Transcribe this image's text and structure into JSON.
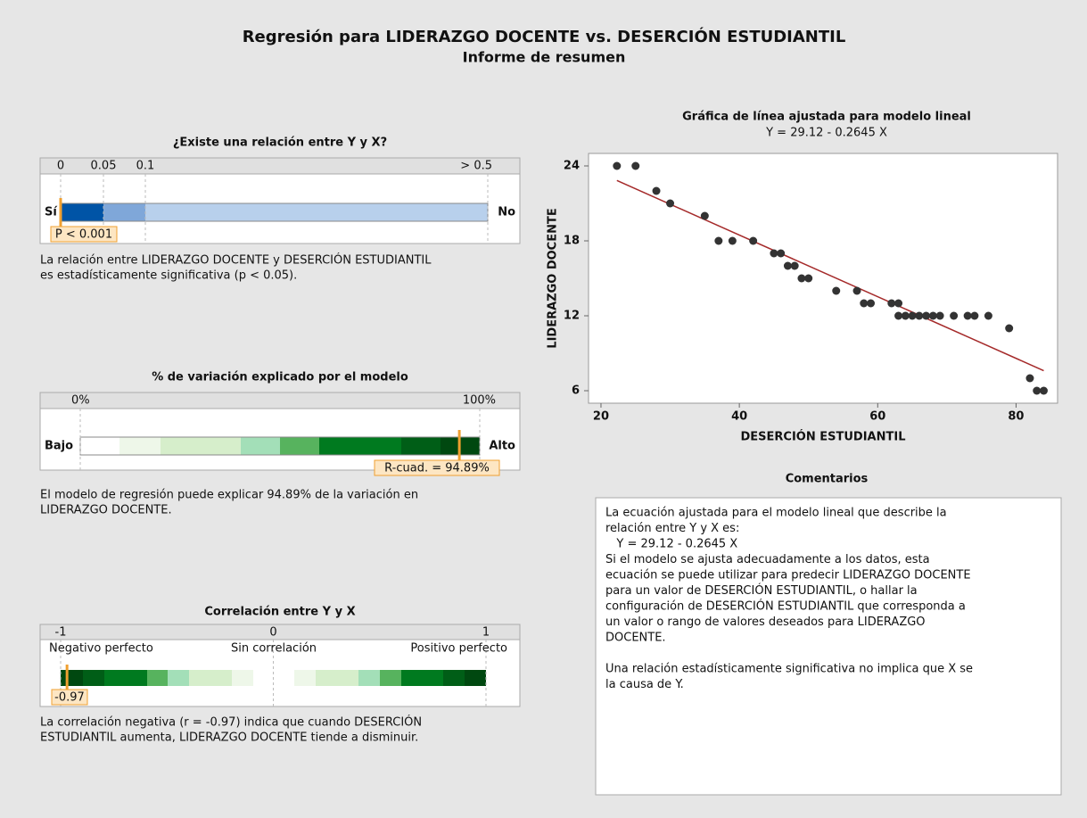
{
  "header": {
    "title": "Regresión para LIDERAZGO DOCENTE vs. DESERCIÓN ESTUDIANTIL",
    "subtitle": "Informe de resumen"
  },
  "relation": {
    "title": "¿Existe una relación entre Y y X?",
    "ticks": [
      0,
      0.05,
      0.1,
      {
        "value": 0.5,
        "label": "> 0.5"
      }
    ],
    "left": "Sí",
    "right": "No",
    "marker": "P < 0.001",
    "text": [
      "La relación entre LIDERAZGO DOCENTE y DESERCIÓN ESTUDIANTIL",
      "es estadísticamente significativa (p < 0.05)."
    ]
  },
  "variation": {
    "title": "% de variación explicado por el modelo",
    "ticks": [
      {
        "value": 0,
        "label": "0%"
      },
      {
        "value": 100,
        "label": "100%"
      }
    ],
    "left": "Bajo",
    "right": "Alto",
    "r_squared": {
      "value": 94.89,
      "label": "R-cuad. = 94.89%"
    },
    "text": [
      "El modelo de regresión puede explicar 94.89% de la variación en",
      "LIDERAZGO DOCENTE."
    ]
  },
  "correlation": {
    "title": "Correlación entre Y y X",
    "ticks": [
      -1,
      0,
      1
    ],
    "tick_texts": [
      "Negativo perfecto",
      "Sin correlación",
      "Positivo perfecto"
    ],
    "r": {
      "value": -0.97,
      "label": "-0.97"
    },
    "text": [
      "La correlación negativa (r = -0.97) indica que cuando DESERCIÓN",
      "ESTUDIANTIL aumenta, LIDERAZGO DOCENTE tiende a disminuir."
    ]
  },
  "chart_data": {
    "type": "scatter",
    "title": "Gráfica de línea ajustada para modelo lineal",
    "subtitle": "Y = 29.12 - 0.2645 X",
    "x_label": "DESERCIÓN ESTUDIANTIL",
    "y_label": "LIDERAZGO DOCENTE",
    "x": [
      22.3,
      25,
      28,
      30,
      35,
      37,
      39,
      42,
      45,
      46,
      47,
      48,
      49,
      50,
      54,
      57,
      58,
      59,
      62,
      63,
      63,
      64,
      65,
      66,
      67,
      68,
      69,
      71,
      73,
      74,
      76,
      79,
      82,
      83,
      84
    ],
    "y": [
      24,
      24,
      22,
      21,
      20,
      18,
      18,
      18,
      17,
      17,
      16,
      16,
      15,
      15,
      14,
      14,
      13,
      13,
      13,
      13,
      12,
      12,
      12,
      12,
      12,
      12,
      12,
      12,
      12,
      12,
      12,
      11,
      7,
      6,
      6
    ],
    "color": "#333333",
    "fit_color": "#a52a2a",
    "xlim": [
      18.2,
      86
    ],
    "ylim": [
      5,
      25
    ],
    "xticks": [
      20,
      40,
      60,
      80
    ],
    "yticks": [
      6,
      12,
      18,
      24
    ]
  },
  "comments": {
    "title": "Comentarios",
    "lines": [
      "La ecuación ajustada para el modelo lineal que describe la",
      "relación entre Y y X es:",
      "   Y = 29.12 - 0.2645 X",
      "Si el modelo se ajusta adecuadamente a los datos, esta",
      "ecuación se puede utilizar para predecir LIDERAZGO DOCENTE",
      "para un valor de DESERCIÓN ESTUDIANTIL, o hallar la",
      "configuración de DESERCIÓN ESTUDIANTIL que corresponda a",
      "un valor o rango de valores deseados para LIDERAZGO",
      "DOCENTE.",
      "",
      "Una relación estadísticamente significativa no implica que X se",
      "la causa de Y."
    ]
  }
}
